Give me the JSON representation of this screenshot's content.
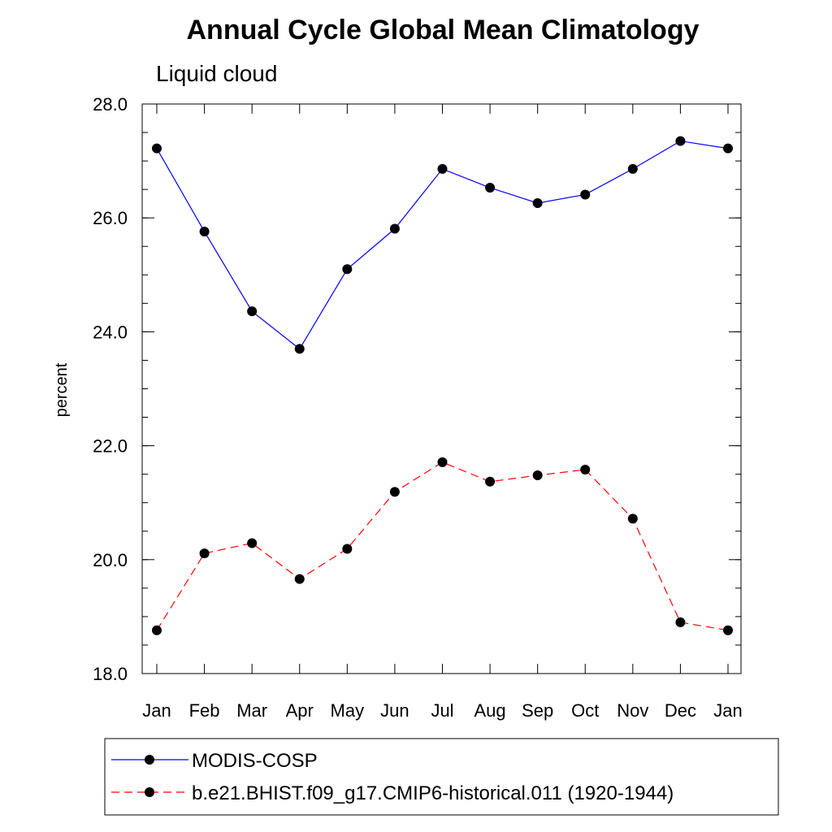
{
  "chart_data": {
    "type": "line",
    "title": "Annual Cycle Global Mean Climatology",
    "subtitle": "Liquid cloud",
    "xlabel": "",
    "ylabel": "percent",
    "categories": [
      "Jan",
      "Feb",
      "Mar",
      "Apr",
      "May",
      "Jun",
      "Jul",
      "Aug",
      "Sep",
      "Oct",
      "Nov",
      "Dec",
      "Jan"
    ],
    "ylim": [
      18.0,
      28.0
    ],
    "yticks": [
      18.0,
      20.0,
      22.0,
      24.0,
      26.0,
      28.0
    ],
    "ytick_labels": [
      "18.0",
      "20.0",
      "22.0",
      "24.0",
      "26.0",
      "28.0"
    ],
    "minor_step": 0.5,
    "grid": false,
    "legend_position": "bottom",
    "series": [
      {
        "name": "MODIS-COSP",
        "color": "#0000ff",
        "dash": "solid",
        "values": [
          27.22,
          25.76,
          24.36,
          23.7,
          25.1,
          25.81,
          26.86,
          26.53,
          26.26,
          26.41,
          26.86,
          27.35,
          27.22
        ]
      },
      {
        "name": "b.e21.BHIST.f09_g17.CMIP6-historical.011 (1920-1944)",
        "color": "#ff0000",
        "dash": "dashed",
        "values": [
          18.76,
          20.11,
          20.29,
          19.66,
          20.19,
          21.19,
          21.71,
          21.37,
          21.48,
          21.58,
          20.72,
          18.9,
          18.76
        ]
      }
    ]
  }
}
